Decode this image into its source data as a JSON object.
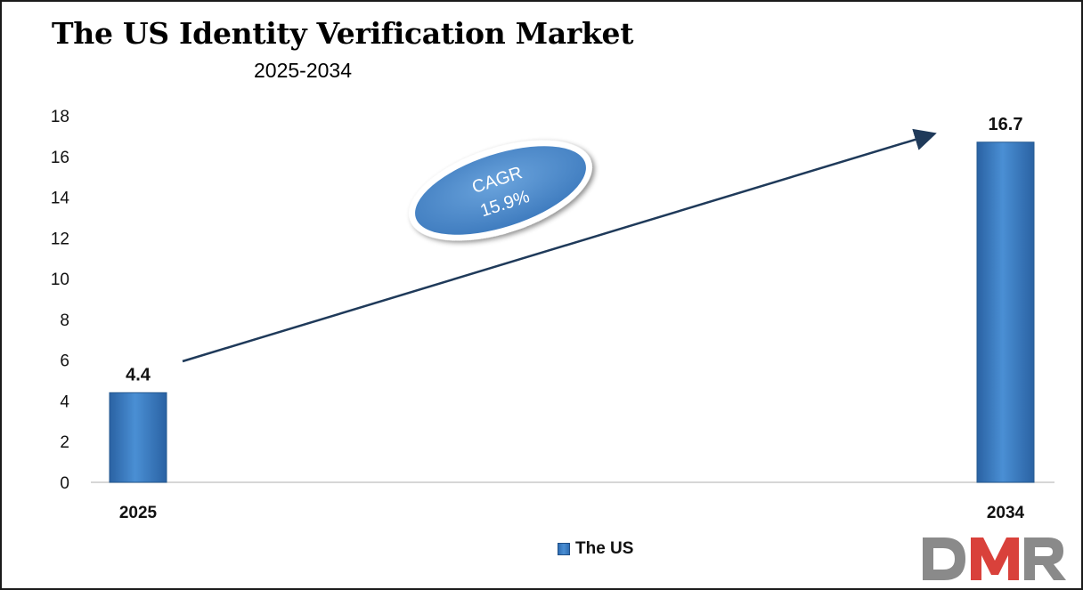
{
  "chart_data": {
    "type": "bar",
    "title": "The US Identity Verification Market",
    "subtitle": "2025-2034",
    "categories": [
      "2025",
      "2034"
    ],
    "series": [
      {
        "name": "The US",
        "values": [
          4.4,
          16.7
        ],
        "color": "#3a7cc4"
      }
    ],
    "data_labels": [
      "4.4",
      "16.7"
    ],
    "ylim": [
      0,
      18
    ],
    "y_ticks": [
      0,
      2,
      4,
      6,
      8,
      10,
      12,
      14,
      16,
      18
    ],
    "grid": false,
    "legend_position": "bottom",
    "annotation": {
      "line1": "CAGR",
      "line2": "15.9%"
    },
    "xlabel": "",
    "ylabel": ""
  },
  "logo_text": "DMR",
  "colors": {
    "bar": "#3a7cc4",
    "arrow": "#1f3a5a",
    "logo_red": "#d9413b",
    "logo_gray": "#8a8a8a"
  }
}
